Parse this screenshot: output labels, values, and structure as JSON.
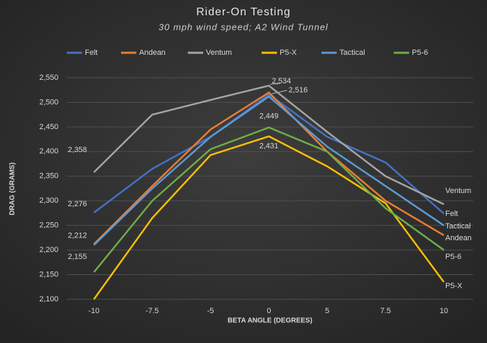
{
  "chart_data": {
    "type": "line",
    "title": "Rider-On Testing",
    "subtitle": "30 mph wind speed; A2 Wind Tunnel",
    "x_label": "BETA ANGLE (DEGREES)",
    "y_label": "DRAG (GRAMS)",
    "categories": [
      "-10",
      "-7.5",
      "-5",
      "0",
      "5",
      "7.5",
      "10"
    ],
    "ylim": [
      2100,
      2550
    ],
    "yticks": [
      {
        "value": 2100,
        "label": "2,100"
      },
      {
        "value": 2150,
        "label": "2,150"
      },
      {
        "value": 2200,
        "label": "2,200"
      },
      {
        "value": 2250,
        "label": "2,250"
      },
      {
        "value": 2300,
        "label": "2,300"
      },
      {
        "value": 2350,
        "label": "2,350"
      },
      {
        "value": 2400,
        "label": "2,400"
      },
      {
        "value": 2450,
        "label": "2,450"
      },
      {
        "value": 2500,
        "label": "2,500"
      },
      {
        "value": 2550,
        "label": "2,550"
      }
    ],
    "grid": true,
    "legend": "top",
    "series": [
      {
        "name": "Felt",
        "color": "#4472c4",
        "values": [
          2276,
          2365,
          2430,
          2516,
          2430,
          2378,
          2274
        ],
        "value_labels": [
          "2,276",
          null,
          null,
          "2,516",
          null,
          null,
          null
        ]
      },
      {
        "name": "Andean",
        "color": "#ed7d31",
        "values": [
          2212,
          2330,
          2445,
          2520,
          2400,
          2300,
          2230
        ],
        "value_labels": [
          "2,212",
          null,
          null,
          null,
          null,
          null,
          null
        ]
      },
      {
        "name": "Ventum",
        "color": "#a5a5a5",
        "values": [
          2358,
          2475,
          2505,
          2534,
          2440,
          2350,
          2293
        ],
        "value_labels": [
          "2,358",
          null,
          null,
          "2,534",
          null,
          null,
          null
        ]
      },
      {
        "name": "P5-X",
        "color": "#ffc000",
        "values": [
          2100,
          2265,
          2393,
          2431,
          2370,
          2295,
          2135
        ],
        "value_labels": [
          null,
          null,
          null,
          "2,431",
          null,
          null,
          null
        ]
      },
      {
        "name": "Tactical",
        "color": "#5b9bd5",
        "values": [
          2210,
          2325,
          2430,
          2512,
          2410,
          2330,
          2250
        ],
        "value_labels": [
          null,
          null,
          null,
          null,
          null,
          null,
          null
        ]
      },
      {
        "name": "P5-6",
        "color": "#70ad47",
        "values": [
          2155,
          2300,
          2405,
          2449,
          2400,
          2285,
          2200
        ],
        "value_labels": [
          "2,155",
          null,
          null,
          "2,449",
          null,
          null,
          null
        ]
      }
    ]
  }
}
